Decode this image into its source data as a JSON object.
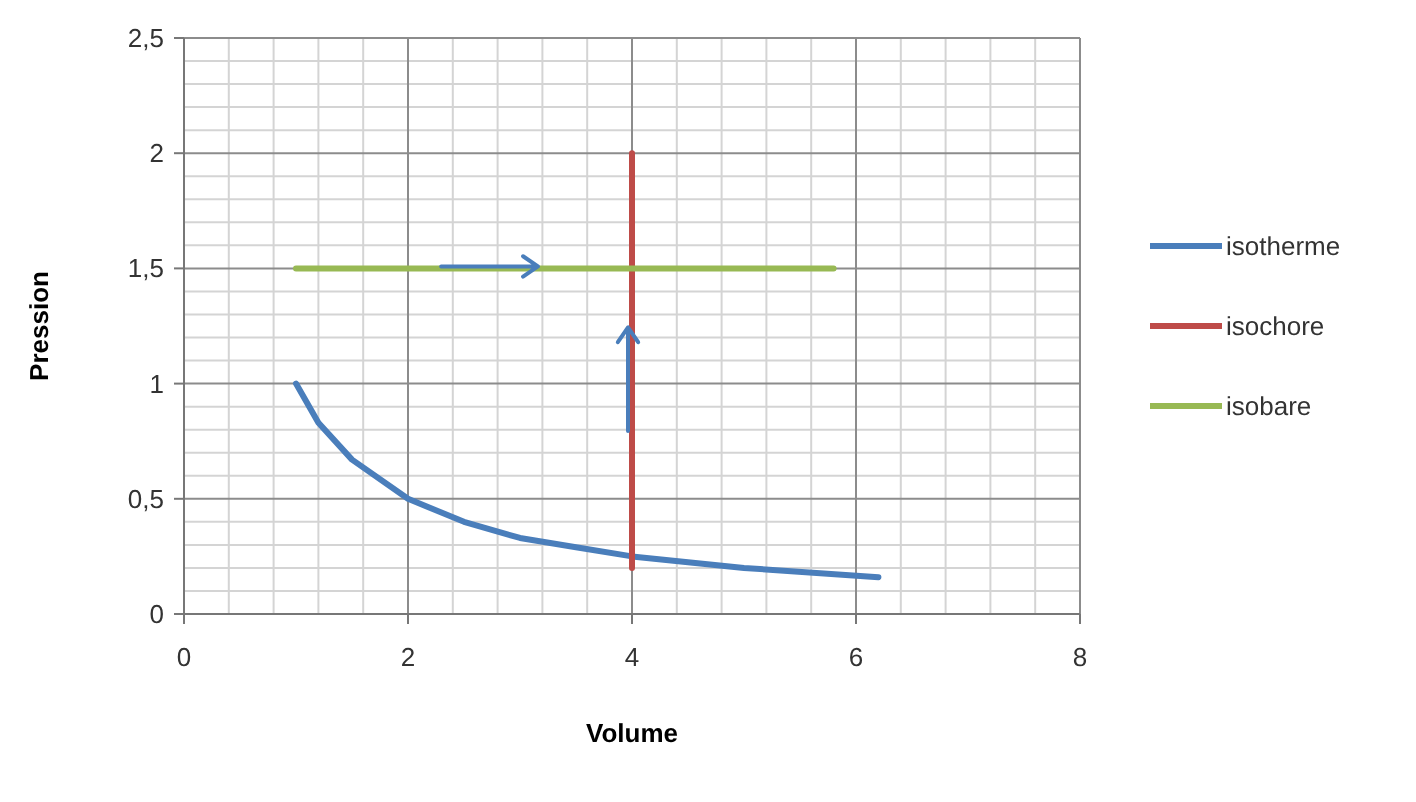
{
  "chart_data": {
    "type": "line",
    "xlabel": "Volume",
    "ylabel": "Pression",
    "xlim": [
      0,
      8
    ],
    "ylim": [
      0,
      2.5
    ],
    "xticks": [
      0,
      2,
      4,
      6,
      8
    ],
    "yticks": [
      0,
      {
        "value": 0.5,
        "label": "0,5"
      },
      1,
      {
        "value": 1.5,
        "label": "1,5"
      },
      2,
      {
        "value": 2.5,
        "label": "2,5"
      }
    ],
    "grid": true,
    "legend": "right",
    "marker": "none",
    "line_style": "solid",
    "series": [
      {
        "name": "isotherme",
        "color": "#4a7ebb",
        "x": [
          1,
          1.2,
          1.5,
          2,
          2.5,
          3,
          3.5,
          4,
          5,
          6.2
        ],
        "values": [
          1,
          0.83,
          0.67,
          0.5,
          0.4,
          0.33,
          0.29,
          0.25,
          0.2,
          0.16
        ]
      },
      {
        "name": "isochore",
        "color": "#be4b48",
        "x": [
          4,
          4
        ],
        "values": [
          0.2,
          2
        ]
      },
      {
        "name": "isobare",
        "color": "#98b954",
        "x": [
          1,
          5.8
        ],
        "values": [
          1.5,
          1.5
        ]
      }
    ]
  }
}
